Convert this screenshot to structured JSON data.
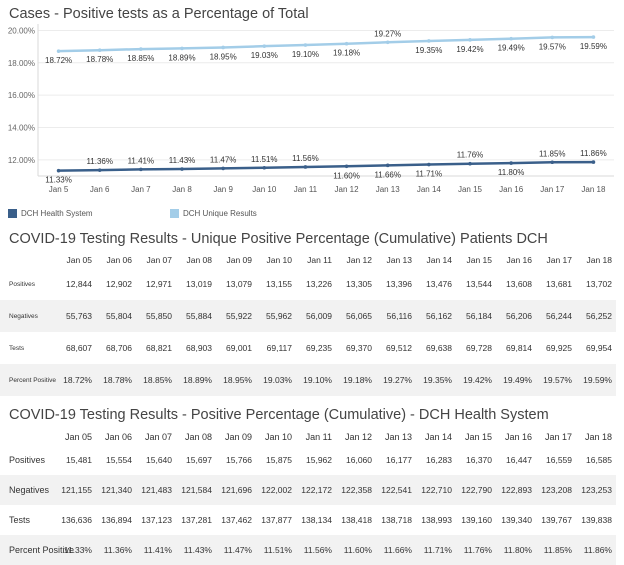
{
  "chart_data": {
    "type": "line",
    "title": "Cases - Positive tests as a Percentage of Total",
    "categories": [
      "Jan 5",
      "Jan 6",
      "Jan 7",
      "Jan 8",
      "Jan 9",
      "Jan 10",
      "Jan 11",
      "Jan 12",
      "Jan 13",
      "Jan 14",
      "Jan 15",
      "Jan 16",
      "Jan 17",
      "Jan 18"
    ],
    "ylim": [
      11.0,
      20.4
    ],
    "yticks": [
      "20.00%",
      "18.00%",
      "16.00%",
      "14.00%",
      "12.00%"
    ],
    "grid": true,
    "legend_position": "bottom-left",
    "series": [
      {
        "name": "DCH Health System",
        "color": "#3a5f8a",
        "values": [
          11.33,
          11.36,
          11.41,
          11.43,
          11.47,
          11.51,
          11.56,
          11.6,
          11.66,
          11.71,
          11.76,
          11.8,
          11.85,
          11.86
        ],
        "labels": [
          "11.33%",
          "11.36%",
          "11.41%",
          "11.43%",
          "11.47%",
          "11.51%",
          "11.56%",
          "11.60%",
          "11.66%",
          "11.71%",
          "11.76%",
          "11.80%",
          "11.85%",
          "11.86%"
        ]
      },
      {
        "name": "DCH Unique Results",
        "color": "#a3cde8",
        "values": [
          18.72,
          18.78,
          18.85,
          18.89,
          18.95,
          19.03,
          19.1,
          19.18,
          19.27,
          19.35,
          19.42,
          19.49,
          19.57,
          19.59
        ],
        "labels": [
          "18.72%",
          "18.78%",
          "18.85%",
          "18.89%",
          "18.95%",
          "19.03%",
          "19.10%",
          "19.18%",
          "19.27%",
          "19.35%",
          "19.42%",
          "19.49%",
          "19.57%",
          "19.59%"
        ]
      }
    ]
  },
  "table1": {
    "title": "COVID-19 Testing Results - Unique Positive Percentage (Cumulative) Patients DCH",
    "columns": [
      "Jan 05",
      "Jan 06",
      "Jan 07",
      "Jan 08",
      "Jan 09",
      "Jan 10",
      "Jan 11",
      "Jan 12",
      "Jan 13",
      "Jan 14",
      "Jan 15",
      "Jan 16",
      "Jan 17",
      "Jan 18"
    ],
    "rows": [
      {
        "label": "Positives",
        "values": [
          "12,844",
          "12,902",
          "12,971",
          "13,019",
          "13,079",
          "13,155",
          "13,226",
          "13,305",
          "13,396",
          "13,476",
          "13,544",
          "13,608",
          "13,681",
          "13,702"
        ]
      },
      {
        "label": "Negatives",
        "values": [
          "55,763",
          "55,804",
          "55,850",
          "55,884",
          "55,922",
          "55,962",
          "56,009",
          "56,065",
          "56,116",
          "56,162",
          "56,184",
          "56,206",
          "56,244",
          "56,252"
        ]
      },
      {
        "label": "Tests",
        "values": [
          "68,607",
          "68,706",
          "68,821",
          "68,903",
          "69,001",
          "69,117",
          "69,235",
          "69,370",
          "69,512",
          "69,638",
          "69,728",
          "69,814",
          "69,925",
          "69,954"
        ]
      },
      {
        "label": "Percent Positive",
        "values": [
          "18.72%",
          "18.78%",
          "18.85%",
          "18.89%",
          "18.95%",
          "19.03%",
          "19.10%",
          "19.18%",
          "19.27%",
          "19.35%",
          "19.42%",
          "19.49%",
          "19.57%",
          "19.59%"
        ]
      }
    ]
  },
  "table2": {
    "title": "COVID-19 Testing Results - Positive Percentage (Cumulative) - DCH Health System",
    "columns": [
      "Jan 05",
      "Jan 06",
      "Jan 07",
      "Jan 08",
      "Jan 09",
      "Jan 10",
      "Jan 11",
      "Jan 12",
      "Jan 13",
      "Jan 14",
      "Jan 15",
      "Jan 16",
      "Jan 17",
      "Jan 18"
    ],
    "rows": [
      {
        "label": "Positives",
        "values": [
          "15,481",
          "15,554",
          "15,640",
          "15,697",
          "15,766",
          "15,875",
          "15,962",
          "16,060",
          "16,177",
          "16,283",
          "16,370",
          "16,447",
          "16,559",
          "16,585"
        ]
      },
      {
        "label": "Negatives",
        "values": [
          "121,155",
          "121,340",
          "121,483",
          "121,584",
          "121,696",
          "122,002",
          "122,172",
          "122,358",
          "122,541",
          "122,710",
          "122,790",
          "122,893",
          "123,208",
          "123,253"
        ]
      },
      {
        "label": "Tests",
        "values": [
          "136,636",
          "136,894",
          "137,123",
          "137,281",
          "137,462",
          "137,877",
          "138,134",
          "138,418",
          "138,718",
          "138,993",
          "139,160",
          "139,340",
          "139,767",
          "139,838"
        ]
      },
      {
        "label": "Percent Positive",
        "values": [
          "11.33%",
          "11.36%",
          "11.41%",
          "11.43%",
          "11.47%",
          "11.51%",
          "11.56%",
          "11.60%",
          "11.66%",
          "11.71%",
          "11.76%",
          "11.80%",
          "11.85%",
          "11.86%"
        ]
      }
    ]
  }
}
